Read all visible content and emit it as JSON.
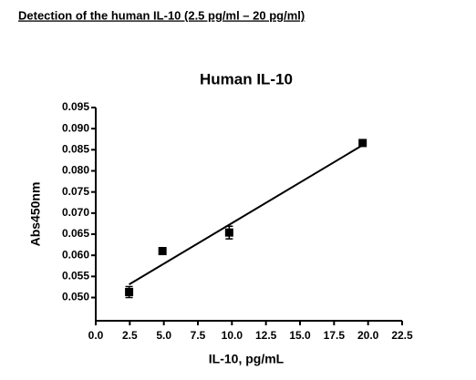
{
  "heading": "Detection of the human IL-10 (2.5 pg/ml – 20 pg/ml)",
  "chart_data": {
    "type": "scatter",
    "title": "Human IL-10",
    "x_label": "IL-10, pg/mL",
    "y_label": "Abs450nm",
    "series": [
      {
        "color": "#000000",
        "x": [
          2.45,
          4.9,
          9.8,
          19.6
        ],
        "values": [
          0.0513,
          0.061,
          0.0654,
          0.0866
        ],
        "errors": [
          0.0013,
          0.0008,
          0.0015,
          0.0003
        ]
      }
    ],
    "fit_line": {
      "color": "#000000",
      "x": [
        2.45,
        19.6
      ],
      "values": [
        0.0531,
        0.0861
      ]
    },
    "xlim": [
      0,
      22.5
    ],
    "xticks": [
      {
        "value": 0,
        "label": "0.0"
      },
      2.5,
      {
        "value": 5,
        "label": "5.0"
      },
      7.5,
      {
        "value": 10,
        "label": "10.0"
      },
      12.5,
      {
        "value": 15,
        "label": "15.0"
      },
      17.5,
      {
        "value": 20,
        "label": "20.0"
      },
      22.5
    ],
    "ylim": [
      0.0445,
      0.095
    ],
    "yticks": [
      {
        "value": 0.05,
        "label": "0.050"
      },
      0.055,
      {
        "value": 0.06,
        "label": "0.060"
      },
      0.065,
      {
        "value": 0.07,
        "label": "0.070"
      },
      0.075,
      {
        "value": 0.08,
        "label": "0.080"
      },
      0.085,
      {
        "value": 0.09,
        "label": "0.090"
      },
      0.095
    ]
  }
}
